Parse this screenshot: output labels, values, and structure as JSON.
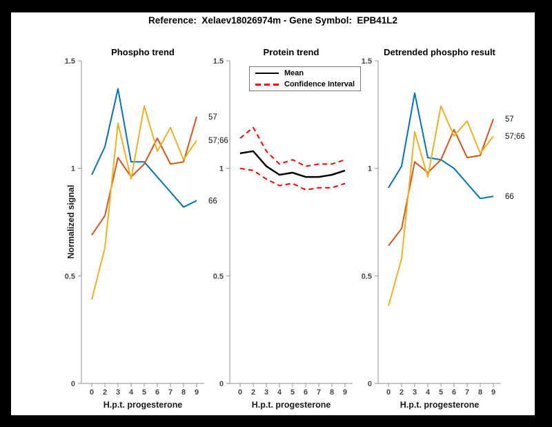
{
  "title": "Reference:  Xelaev18026974m - Gene Symbol:  EPB41L2",
  "colors": {
    "blue": "#0072BD",
    "orange": "#D95319",
    "yellow": "#EDB120",
    "mean": "#000000",
    "confidence": "#FF0000",
    "axis_spine": "#909090",
    "tick_text": "#454545"
  },
  "axis": {
    "ylim": [
      0,
      1.5
    ],
    "yticks": [
      {
        "value": 0,
        "label": "0"
      },
      {
        "value": 0.5,
        "label": "0.5"
      },
      {
        "value": 1,
        "label": "1"
      },
      {
        "value": 1.5,
        "label": "1.5"
      }
    ],
    "x_categories": [
      "0",
      "2",
      "3",
      "4",
      "5",
      "6",
      "7",
      "8",
      "9"
    ]
  },
  "chart_data": [
    {
      "type": "line",
      "title": "Phospho trend",
      "xlabel": "H.p.t. progesterone",
      "ylabel": "Normalized signal",
      "x": [
        0,
        2,
        3,
        4,
        5,
        6,
        7,
        8,
        9
      ],
      "ylim": [
        0,
        1.5
      ],
      "grid": false,
      "series": [
        {
          "name": "66",
          "color": "#0072BD",
          "style": "solid",
          "width": 2,
          "end_label": "66",
          "values": [
            0.97,
            1.1,
            1.37,
            1.03,
            1.03,
            0.96,
            0.89,
            0.82,
            0.85
          ]
        },
        {
          "name": "57",
          "color": "#D95319",
          "style": "solid",
          "width": 2,
          "end_label": "57",
          "values": [
            0.69,
            0.78,
            1.05,
            0.96,
            1.02,
            1.14,
            1.02,
            1.03,
            1.24
          ]
        },
        {
          "name": "57;66",
          "color": "#EDB120",
          "style": "solid",
          "width": 2,
          "end_label": "57;66",
          "values": [
            0.39,
            0.63,
            1.21,
            0.95,
            1.29,
            1.08,
            1.19,
            1.04,
            1.13
          ]
        }
      ]
    },
    {
      "type": "line",
      "title": "Protein trend",
      "xlabel": "H.p.t. progesterone",
      "ylabel": "Normalized signal",
      "x": [
        0,
        2,
        3,
        4,
        5,
        6,
        7,
        8,
        9
      ],
      "ylim": [
        0,
        1.5
      ],
      "grid": false,
      "legend": {
        "position": "top-left",
        "entries": [
          {
            "label": "Mean",
            "color": "#000000",
            "style": "solid"
          },
          {
            "label": "Confidence Interval",
            "color": "#FF0000",
            "style": "dashed"
          }
        ]
      },
      "series": [
        {
          "name": "Mean",
          "color": "#000000",
          "style": "solid",
          "width": 2.5,
          "end_label": "",
          "values": [
            1.07,
            1.08,
            1.01,
            0.97,
            0.98,
            0.96,
            0.96,
            0.97,
            0.99
          ]
        },
        {
          "name": "Confidence Interval upper",
          "color": "#FF0000",
          "style": "dashed",
          "width": 2,
          "end_label": "",
          "values": [
            1.14,
            1.19,
            1.08,
            1.02,
            1.04,
            1.01,
            1.02,
            1.02,
            1.04
          ]
        },
        {
          "name": "Confidence Interval lower",
          "color": "#FF0000",
          "style": "dashed",
          "width": 2,
          "end_label": "",
          "values": [
            1.0,
            0.99,
            0.95,
            0.92,
            0.93,
            0.9,
            0.91,
            0.91,
            0.93
          ]
        }
      ]
    },
    {
      "type": "line",
      "title": "Detrended phospho result",
      "xlabel": "H.p.t. progesterone",
      "ylabel": "Normalized signal",
      "x": [
        0,
        2,
        3,
        4,
        5,
        6,
        7,
        8,
        9
      ],
      "ylim": [
        0,
        1.5
      ],
      "grid": false,
      "series": [
        {
          "name": "66",
          "color": "#0072BD",
          "style": "solid",
          "width": 2,
          "end_label": "66",
          "values": [
            0.91,
            1.01,
            1.35,
            1.05,
            1.04,
            1.0,
            0.93,
            0.86,
            0.87
          ]
        },
        {
          "name": "57",
          "color": "#D95319",
          "style": "solid",
          "width": 2,
          "end_label": "57",
          "values": [
            0.64,
            0.72,
            1.03,
            0.98,
            1.04,
            1.18,
            1.05,
            1.06,
            1.23
          ]
        },
        {
          "name": "57;66",
          "color": "#EDB120",
          "style": "solid",
          "width": 2,
          "end_label": "57;66",
          "values": [
            0.36,
            0.58,
            1.17,
            0.96,
            1.29,
            1.15,
            1.22,
            1.07,
            1.15
          ]
        }
      ]
    }
  ]
}
